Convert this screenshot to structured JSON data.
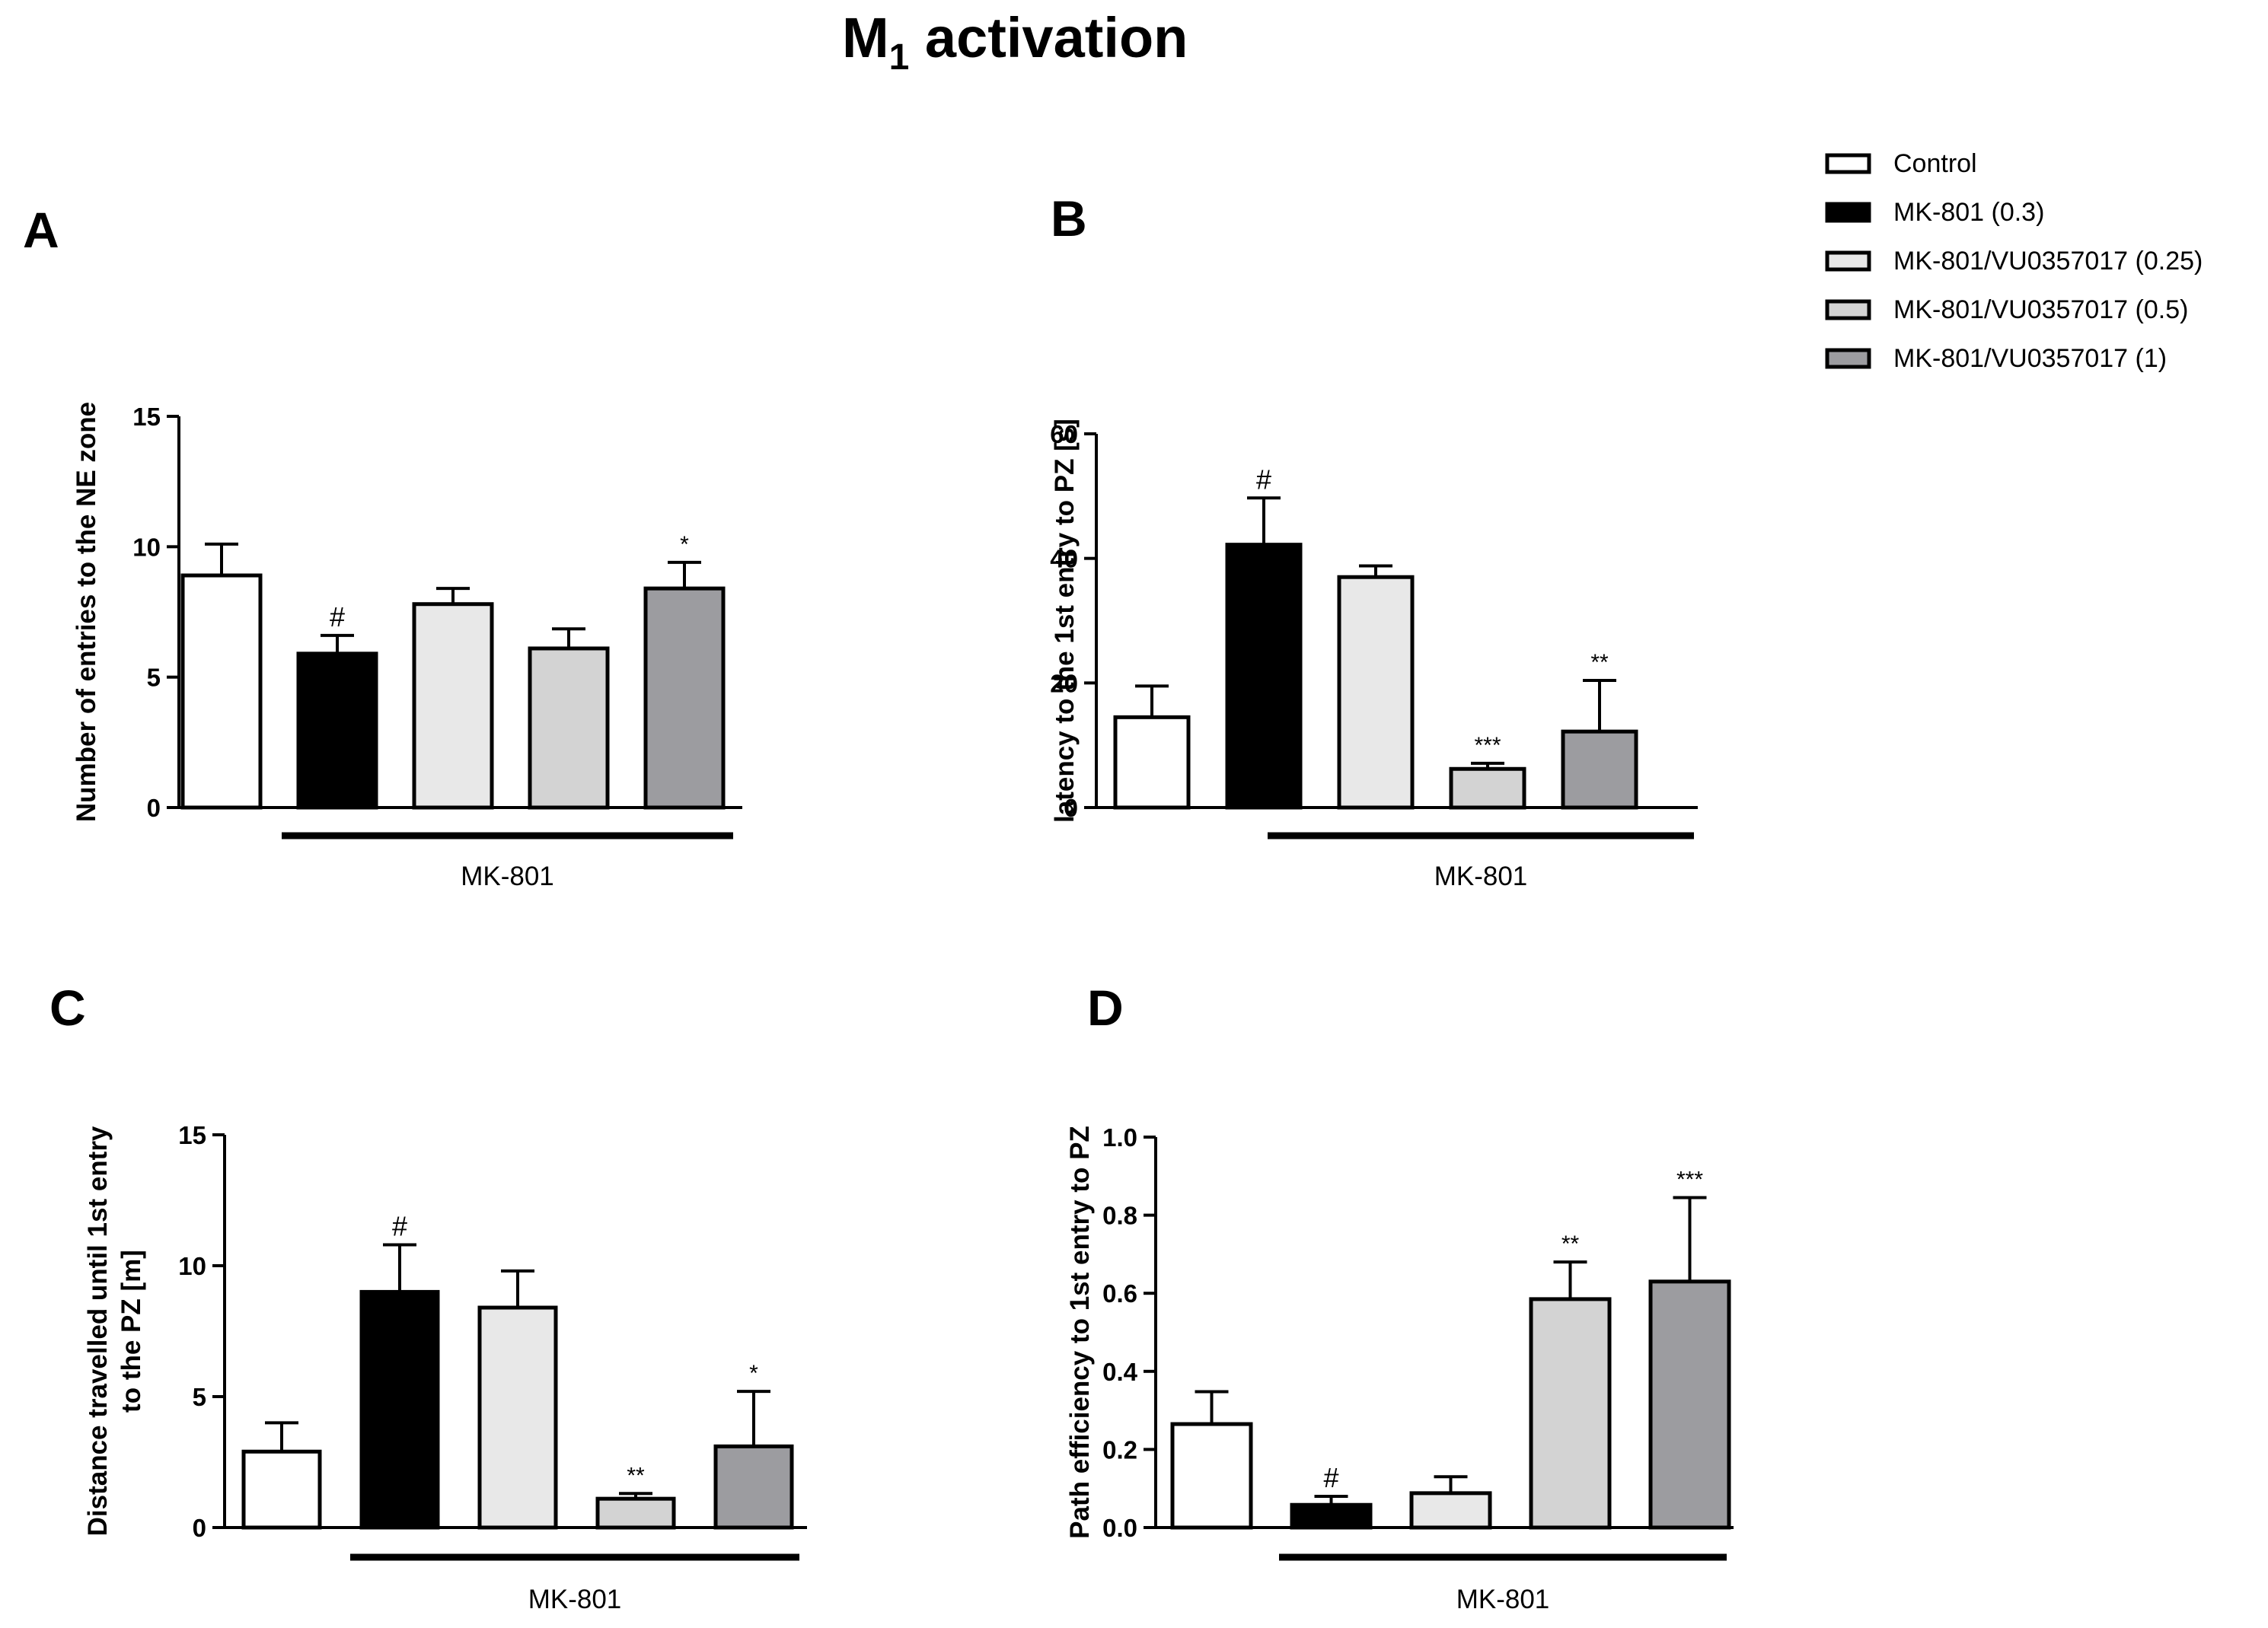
{
  "figure": {
    "title_main": "M",
    "title_sub": "1",
    "title_rest": " activation"
  },
  "legend": {
    "position": "top-right",
    "entries": [
      {
        "label": "Control",
        "color": "#ffffff"
      },
      {
        "label": "MK-801 (0.3)",
        "color": "#000000"
      },
      {
        "label": "MK-801/VU0357017 (0.25)",
        "color": "#e8e8e8"
      },
      {
        "label": "MK-801/VU0357017 (0.5)",
        "color": "#d3d3d3"
      },
      {
        "label": "MK-801/VU0357017 (1)",
        "color": "#9c9ca0"
      }
    ]
  },
  "chart_data": [
    {
      "panel": "A",
      "type": "bar",
      "ylabel": "Number of entries to the NE zone",
      "xlabel": "",
      "group_label": "MK-801",
      "ylim": [
        0,
        15
      ],
      "yticks": [
        0,
        5,
        10,
        15
      ],
      "ytick_labels": [
        "0",
        "5",
        "10",
        "15"
      ],
      "categories": [
        "Control",
        "MK-801 (0.3)",
        "MK-801/VU0357017 (0.25)",
        "MK-801/VU0357017 (0.5)",
        "MK-801/VU0357017 (1)"
      ],
      "values": [
        8.9,
        5.9,
        7.8,
        6.1,
        8.4
      ],
      "errors": [
        1.2,
        0.7,
        0.6,
        0.75,
        1.0
      ],
      "annotations": [
        "",
        "#",
        "",
        "",
        "*"
      ]
    },
    {
      "panel": "B",
      "type": "bar",
      "ylabel": "latency to the 1st entry to PZ [s]",
      "xlabel": "",
      "group_label": "MK-801",
      "ylim": [
        0,
        60
      ],
      "yticks": [
        0,
        20,
        40,
        60
      ],
      "ytick_labels": [
        "0",
        "20",
        "40",
        "60"
      ],
      "categories": [
        "Control",
        "MK-801 (0.3)",
        "MK-801/VU0357017 (0.25)",
        "MK-801/VU0357017 (0.5)",
        "MK-801/VU0357017 (1)"
      ],
      "values": [
        14.5,
        42.2,
        37.0,
        6.2,
        12.2
      ],
      "errors": [
        5.0,
        7.5,
        1.8,
        0.9,
        8.2
      ],
      "annotations": [
        "",
        "#",
        "",
        "***",
        "**"
      ]
    },
    {
      "panel": "C",
      "type": "bar",
      "ylabel": "Distance travelled until 1st entry to the PZ [m]",
      "xlabel": "",
      "group_label": "MK-801",
      "ylim": [
        0,
        15
      ],
      "yticks": [
        0,
        5,
        10,
        15
      ],
      "ytick_labels": [
        "0",
        "5",
        "10",
        "15"
      ],
      "categories": [
        "Control",
        "MK-801 (0.3)",
        "MK-801/VU0357017 (0.25)",
        "MK-801/VU0357017 (0.5)",
        "MK-801/VU0357017 (1)"
      ],
      "values": [
        2.9,
        9.0,
        8.4,
        1.1,
        3.1
      ],
      "errors": [
        1.1,
        1.8,
        1.4,
        0.2,
        2.1
      ],
      "annotations": [
        "",
        "#",
        "",
        "**",
        "*"
      ]
    },
    {
      "panel": "D",
      "type": "bar",
      "ylabel": "Path efficiency to 1st entry to PZ",
      "xlabel": "",
      "group_label": "MK-801",
      "ylim": [
        0,
        1.0
      ],
      "yticks": [
        0,
        0.2,
        0.4,
        0.6,
        0.8,
        1.0
      ],
      "ytick_labels": [
        "0.0",
        "0.2",
        "0.4",
        "0.6",
        "0.8",
        "1.0"
      ],
      "categories": [
        "Control",
        "MK-801 (0.3)",
        "MK-801/VU0357017 (0.25)",
        "MK-801/VU0357017 (0.5)",
        "MK-801/VU0357017 (1)"
      ],
      "values": [
        0.265,
        0.058,
        0.088,
        0.585,
        0.63
      ],
      "errors": [
        0.083,
        0.022,
        0.042,
        0.095,
        0.215
      ],
      "annotations": [
        "",
        "#",
        "",
        "**",
        "***"
      ]
    }
  ]
}
